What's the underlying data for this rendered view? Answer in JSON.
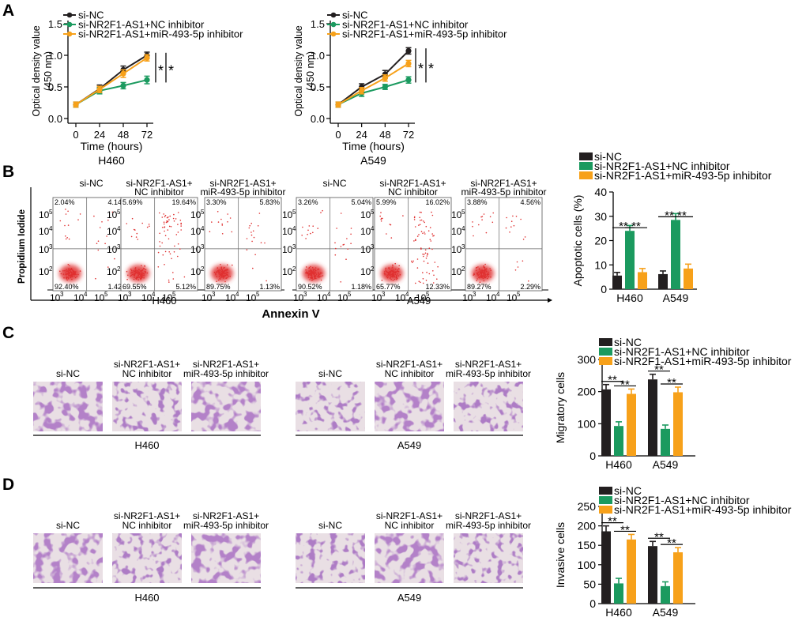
{
  "colors": {
    "black": "#231f20",
    "green": "#1b9a5f",
    "orange": "#f7a11a",
    "purple": "#7a3fa0",
    "flowRed": "#e03030"
  },
  "panel_labels": [
    "A",
    "B",
    "C",
    "D"
  ],
  "stat_marks": {
    "single": "*",
    "double": "**"
  },
  "flow": {
    "y_label": "Propidium Iodide",
    "x_label": "Annexin V",
    "y_ticks": [
      "10",
      "10",
      "10"
    ],
    "y_exps": [
      "5",
      "4",
      "3"
    ],
    "y_ticks_bottom": [
      "10"
    ],
    "y_exps_bottom": [
      "2"
    ],
    "x_ticks": [
      "10",
      "10",
      "10"
    ],
    "x_exps": [
      "3",
      "4",
      "5"
    ],
    "groups": [
      "H460",
      "A549"
    ],
    "plots": [
      {
        "title1": "si-NC",
        "title2": "",
        "ul": "2.04%",
        "ur": "4.14%",
        "ll": "92.40%",
        "lr": "1.42%"
      },
      {
        "title1": "si-NR2F1-AS1+",
        "title2": "NC inhibitor",
        "ul": "5.69%",
        "ur": "19.64%",
        "ll": "69.55%",
        "lr": "5.12%"
      },
      {
        "title1": "si-NR2F1-AS1+",
        "title2": "miR-493-5p inhibitor",
        "ul": "3.30%",
        "ur": "5.83%",
        "ll": "89.75%",
        "lr": "1.13%"
      },
      {
        "title1": "si-NC",
        "title2": "",
        "ul": "3.26%",
        "ur": "5.04%",
        "ll": "90.52%",
        "lr": "1.18%"
      },
      {
        "title1": "si-NR2F1-AS1+",
        "title2": "NC inhibitor",
        "ul": "5.99%",
        "ur": "16.02%",
        "ll": "65.77%",
        "lr": "12.33%"
      },
      {
        "title1": "si-NR2F1-AS1+",
        "title2": "miR-493-5p inhibitor",
        "ul": "3.88%",
        "ur": "4.56%",
        "ll": "89.27%",
        "lr": "2.29%"
      }
    ]
  },
  "micro": {
    "c": {
      "groups": [
        "H460",
        "A549"
      ],
      "titles": [
        [
          "si-NC",
          ""
        ],
        [
          "si-NR2F1-AS1+",
          "NC inhibitor"
        ],
        [
          "si-NR2F1-AS1+",
          "miR-493-5p inhibitor"
        ],
        [
          "si-NC",
          ""
        ],
        [
          "si-NR2F1-AS1+",
          "NC inhibitor"
        ],
        [
          "si-NR2F1-AS1+",
          "miR-493-5p inhibitor"
        ]
      ]
    },
    "d": {
      "groups": [
        "H460",
        "A549"
      ],
      "titles": [
        [
          "si-NC",
          ""
        ],
        [
          "si-NR2F1-AS1+",
          "NC inhibitor"
        ],
        [
          "si-NR2F1-AS1+",
          "miR-493-5p inhibitor"
        ],
        [
          "si-NC",
          ""
        ],
        [
          "si-NR2F1-AS1+",
          "NC inhibitor"
        ],
        [
          "si-NR2F1-AS1+",
          "miR-493-5p inhibitor"
        ]
      ]
    }
  },
  "chart_data": [
    {
      "id": "a1",
      "type": "line",
      "title": "H460",
      "xlabel": "Time (hours)",
      "ylabel": "Optical density value",
      "ylabel2": "(450 nm)",
      "x": [
        0,
        24,
        48,
        72
      ],
      "xlim": [
        0,
        72
      ],
      "ylim": [
        0,
        1.5
      ],
      "yticks": [
        "0.0",
        "0.5",
        "1.0",
        "1.5"
      ],
      "xticks": [
        "0",
        "24",
        "48",
        "72"
      ],
      "series": [
        {
          "name": "si-NC",
          "values": [
            0.22,
            0.47,
            0.77,
            1.0
          ],
          "err": [
            0.04,
            0.06,
            0.06,
            0.05
          ]
        },
        {
          "name": "si-NR2F1-AS1+NC inhibitor",
          "values": [
            0.22,
            0.44,
            0.52,
            0.61
          ],
          "err": [
            0.04,
            0.05,
            0.05,
            0.06
          ]
        },
        {
          "name": "si-NR2F1-AS1+miR-493-5p inhibitor",
          "values": [
            0.22,
            0.46,
            0.71,
            0.96
          ],
          "err": [
            0.04,
            0.05,
            0.06,
            0.05
          ]
        }
      ]
    },
    {
      "id": "a2",
      "type": "line",
      "title": "A549",
      "xlabel": "Time (hours)",
      "ylabel": "Optical density value",
      "ylabel2": "(450 nm)",
      "x": [
        0,
        24,
        48,
        72
      ],
      "xlim": [
        0,
        72
      ],
      "ylim": [
        0,
        1.5
      ],
      "yticks": [
        "0.0",
        "0.5",
        "1.0",
        "1.5"
      ],
      "xticks": [
        "0",
        "24",
        "48",
        "72"
      ],
      "series": [
        {
          "name": "si-NC",
          "values": [
            0.22,
            0.5,
            0.7,
            1.07
          ],
          "err": [
            0.04,
            0.05,
            0.06,
            0.05
          ]
        },
        {
          "name": "si-NR2F1-AS1+NC inhibitor",
          "values": [
            0.22,
            0.4,
            0.5,
            0.61
          ],
          "err": [
            0.04,
            0.05,
            0.04,
            0.05
          ]
        },
        {
          "name": "si-NR2F1-AS1+miR-493-5p inhibitor",
          "values": [
            0.22,
            0.44,
            0.64,
            0.87
          ],
          "err": [
            0.04,
            0.05,
            0.05,
            0.05
          ]
        }
      ]
    },
    {
      "id": "b",
      "type": "bar",
      "ylabel": "Apoptotic cells (%)",
      "categories": [
        "H460",
        "A549"
      ],
      "ylim": [
        0,
        40
      ],
      "yticks": [
        "0",
        "10",
        "20",
        "30",
        "40"
      ],
      "series": [
        {
          "name": "si-NC",
          "values": [
            5.6,
            6.2
          ],
          "err": [
            1.3,
            1.3
          ]
        },
        {
          "name": "si-NR2F1-AS1+NC inhibitor",
          "values": [
            24,
            28.5
          ],
          "err": [
            2.2,
            2.6
          ]
        },
        {
          "name": "si-NR2F1-AS1+miR-493-5p inhibitor",
          "values": [
            7.0,
            8.5
          ],
          "err": [
            1.5,
            1.8
          ]
        }
      ]
    },
    {
      "id": "c",
      "type": "bar",
      "ylabel": "Migratory cells",
      "categories": [
        "H460",
        "A549"
      ],
      "ylim": [
        0,
        300
      ],
      "yticks": [
        "0",
        "100",
        "200",
        "300"
      ],
      "series": [
        {
          "name": "si-NC",
          "values": [
            207,
            238
          ],
          "err": [
            15,
            16
          ]
        },
        {
          "name": "si-NR2F1-AS1+NC inhibitor",
          "values": [
            93,
            84
          ],
          "err": [
            13,
            12
          ]
        },
        {
          "name": "si-NR2F1-AS1+miR-493-5p inhibitor",
          "values": [
            193,
            198
          ],
          "err": [
            15,
            16
          ]
        }
      ]
    },
    {
      "id": "d",
      "type": "bar",
      "ylabel": "Invasive cells",
      "categories": [
        "H460",
        "A549"
      ],
      "ylim": [
        0,
        250
      ],
      "yticks": [
        "0",
        "50",
        "100",
        "150",
        "200",
        "250"
      ],
      "series": [
        {
          "name": "si-NC",
          "values": [
            186,
            148
          ],
          "err": [
            14,
            12
          ]
        },
        {
          "name": "si-NR2F1-AS1+NC inhibitor",
          "values": [
            52,
            45
          ],
          "err": [
            13,
            11
          ]
        },
        {
          "name": "si-NR2F1-AS1+miR-493-5p inhibitor",
          "values": [
            165,
            132
          ],
          "err": [
            13,
            12
          ]
        }
      ]
    }
  ]
}
